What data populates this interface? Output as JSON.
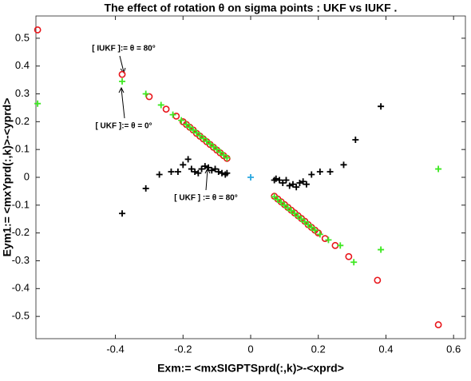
{
  "chart_data": {
    "type": "scatter",
    "title": "The effect of rotation θ on sigma points : UKF vs IUKF .",
    "x_label": "Exm:= <mxSIGPTSprd(:,k)>-<xprd>",
    "y_label": "Eym1:= <mxYprd(:,k)>-<yprd>",
    "xlim": [
      -0.635,
      0.635
    ],
    "ylim": [
      -0.58,
      0.58
    ],
    "xticks": [
      -0.4,
      -0.2,
      0,
      0.2,
      0.4,
      0.6
    ],
    "yticks": [
      -0.5,
      -0.4,
      -0.3,
      -0.2,
      -0.1,
      0,
      0.1,
      0.2,
      0.3,
      0.4,
      0.5
    ],
    "grid": false,
    "series": [
      {
        "color": "#e8161b",
        "marker": "o",
        "x": [
          -0.63,
          -0.38,
          -0.3,
          -0.25,
          -0.22,
          -0.2,
          -0.19,
          -0.18,
          -0.17,
          -0.16,
          -0.15,
          -0.14,
          -0.13,
          -0.12,
          -0.11,
          -0.1,
          -0.09,
          -0.08,
          -0.07,
          0.07,
          0.08,
          0.09,
          0.1,
          0.11,
          0.12,
          0.13,
          0.14,
          0.15,
          0.16,
          0.17,
          0.18,
          0.19,
          0.2,
          0.22,
          0.25,
          0.29,
          0.375,
          0.555
        ],
        "y": [
          0.53,
          0.37,
          0.29,
          0.245,
          0.22,
          0.2,
          0.19,
          0.18,
          0.17,
          0.158,
          0.148,
          0.138,
          0.128,
          0.118,
          0.108,
          0.098,
          0.088,
          0.078,
          0.068,
          -0.068,
          -0.078,
          -0.088,
          -0.098,
          -0.108,
          -0.118,
          -0.128,
          -0.138,
          -0.148,
          -0.158,
          -0.17,
          -0.18,
          -0.19,
          -0.2,
          -0.22,
          -0.245,
          -0.285,
          -0.37,
          -0.53
        ]
      },
      {
        "color": "#3ee822",
        "marker": "+",
        "x": [
          -0.63,
          -0.38,
          -0.31,
          -0.265,
          -0.23,
          -0.205,
          -0.19,
          -0.18,
          -0.17,
          -0.16,
          -0.15,
          -0.14,
          -0.13,
          -0.12,
          -0.11,
          -0.1,
          -0.09,
          -0.08,
          -0.07,
          0.07,
          0.08,
          0.09,
          0.1,
          0.11,
          0.12,
          0.13,
          0.14,
          0.15,
          0.16,
          0.17,
          0.18,
          0.19,
          0.205,
          0.23,
          0.265,
          0.305,
          0.385,
          0.555
        ],
        "y": [
          0.265,
          0.345,
          0.3,
          0.26,
          0.225,
          0.205,
          0.19,
          0.18,
          0.17,
          0.16,
          0.15,
          0.14,
          0.13,
          0.12,
          0.11,
          0.1,
          0.09,
          0.08,
          0.07,
          -0.07,
          -0.08,
          -0.09,
          -0.1,
          -0.11,
          -0.12,
          -0.13,
          -0.14,
          -0.15,
          -0.16,
          -0.17,
          -0.18,
          -0.19,
          -0.205,
          -0.225,
          -0.245,
          -0.305,
          -0.26,
          0.03
        ]
      },
      {
        "color": "#000000",
        "marker": "+",
        "x": [
          -0.38,
          -0.31,
          -0.27,
          -0.235,
          -0.215,
          -0.2,
          -0.185,
          -0.175,
          -0.165,
          -0.155,
          -0.145,
          -0.135,
          -0.125,
          -0.115,
          -0.105,
          -0.095,
          -0.085,
          -0.075,
          -0.07,
          0.07,
          0.075,
          0.085,
          0.095,
          0.105,
          0.115,
          0.125,
          0.135,
          0.145,
          0.155,
          0.165,
          0.18,
          0.205,
          0.235,
          0.275,
          0.31,
          0.385
        ],
        "y": [
          -0.13,
          -0.04,
          0.01,
          0.02,
          0.02,
          0.045,
          0.065,
          0.03,
          0.02,
          0.015,
          0.03,
          0.04,
          0.035,
          0.025,
          0.03,
          0.02,
          0.015,
          0.01,
          0.015,
          -0.01,
          -0.005,
          -0.01,
          -0.02,
          -0.01,
          -0.03,
          -0.025,
          -0.035,
          -0.02,
          -0.015,
          -0.025,
          0.01,
          0.02,
          0.02,
          0.045,
          0.135,
          0.255
        ]
      },
      {
        "color": "#2aa8e0",
        "marker": "+",
        "x": [
          0
        ],
        "y": [
          0
        ]
      }
    ],
    "annotations": [
      "[ IUKF ]:= θ = 80°",
      "[ UKF ]:= θ = 0°",
      "[ UKF ] := θ = 80°"
    ]
  }
}
